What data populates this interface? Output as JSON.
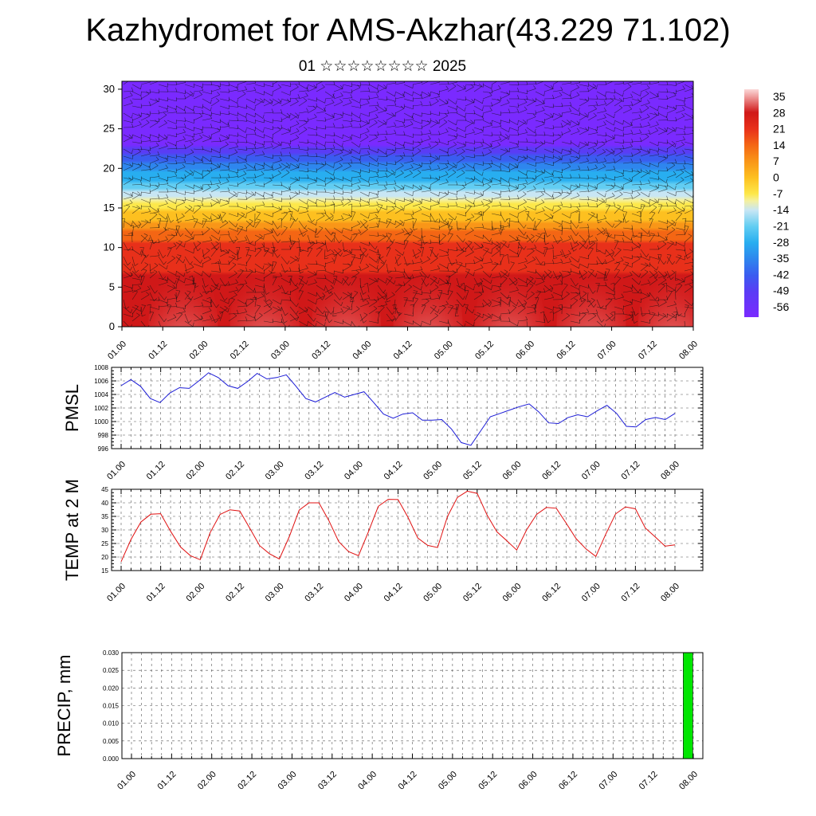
{
  "header": {
    "title": "Kazhydromet for AMS-Akzhar(43.229 71.102)",
    "subtitle": "01 ☆☆☆☆☆☆☆☆ 2025"
  },
  "time_labels": [
    "01.00",
    "01.12",
    "02.00",
    "02.12",
    "03.00",
    "03.12",
    "04.00",
    "04.12",
    "05.00",
    "05.12",
    "06.00",
    "06.12",
    "07.00",
    "07.12",
    "08.00"
  ],
  "chart_data": [
    {
      "type": "heatmap",
      "name": "cross-section",
      "ylim": [
        0,
        31
      ],
      "yticks": [
        0,
        5,
        10,
        15,
        20,
        25,
        30
      ],
      "colorbar_labels": [
        "35",
        "28",
        "21",
        "14",
        "7",
        "0",
        "-7",
        "-14",
        "-21",
        "-28",
        "-35",
        "-42",
        "-49",
        "-56"
      ],
      "colorbar_range": [
        -60,
        38
      ],
      "colorscale": [
        {
          "v": -60,
          "color": "#7a2aff"
        },
        {
          "v": -49,
          "color": "#5a3cf5"
        },
        {
          "v": -42,
          "color": "#3a5cf0"
        },
        {
          "v": -35,
          "color": "#2e86ee"
        },
        {
          "v": -28,
          "color": "#28aef0"
        },
        {
          "v": -21,
          "color": "#62cdf2"
        },
        {
          "v": -14,
          "color": "#c8e6f4"
        },
        {
          "v": -10,
          "color": "#f4f0a0"
        },
        {
          "v": -7,
          "color": "#fde84a"
        },
        {
          "v": 0,
          "color": "#fdc020"
        },
        {
          "v": 7,
          "color": "#f99618"
        },
        {
          "v": 14,
          "color": "#f46614"
        },
        {
          "v": 21,
          "color": "#e8301a"
        },
        {
          "v": 28,
          "color": "#d01818"
        },
        {
          "v": 35,
          "color": "#f0a0a0"
        },
        {
          "v": 38,
          "color": "#fbd8d8"
        }
      ]
    },
    {
      "type": "line",
      "ylabel": "PMSL",
      "ylim": [
        996,
        1008
      ],
      "yticks": [
        996,
        998,
        1000,
        1002,
        1004,
        1006,
        1008
      ],
      "color": "#1b1bd6",
      "series": [
        {
          "values": [
            1005.3,
            1006.2,
            1005.2,
            1003.4,
            1002.8,
            1004.2,
            1005.0,
            1004.9,
            1006.0,
            1007.2,
            1006.5,
            1005.3,
            1004.9,
            1005.9,
            1007.1,
            1006.3,
            1006.5,
            1006.9,
            1005.2,
            1003.4,
            1002.9,
            1003.6,
            1004.3,
            1003.6,
            1004.0,
            1004.4,
            1002.8,
            1001.1,
            1000.5,
            1001.1,
            1001.3,
            1000.2,
            1000.2,
            1000.3,
            998.9,
            996.9,
            996.5,
            998.6,
            1000.7,
            1001.2,
            1001.7,
            1002.2,
            1002.6,
            1001.4,
            999.8,
            999.7,
            1000.6,
            1001.0,
            1000.7,
            1001.6,
            1002.4,
            1001.2,
            999.3,
            999.2,
            1000.3,
            1000.6,
            1000.3,
            1001.2
          ]
        }
      ]
    },
    {
      "type": "line",
      "ylabel": "TEMP at 2 M",
      "ylim": [
        15,
        45
      ],
      "yticks": [
        15,
        20,
        25,
        30,
        35,
        40,
        45
      ],
      "color": "#e01010",
      "series": [
        {
          "values": [
            18.3,
            26.5,
            32.9,
            35.8,
            36.0,
            29.5,
            23.7,
            20.5,
            19.0,
            29.0,
            35.7,
            37.4,
            37.0,
            30.7,
            24.2,
            21.2,
            19.3,
            27.5,
            37.3,
            40.0,
            40.0,
            33.5,
            25.7,
            22.0,
            20.5,
            29.3,
            38.7,
            41.3,
            41.2,
            34.7,
            27.0,
            24.3,
            23.5,
            35.0,
            42.0,
            44.3,
            43.5,
            35.5,
            29.3,
            26.0,
            22.6,
            30.0,
            35.7,
            38.3,
            38.0,
            32.5,
            26.8,
            23.0,
            20.2,
            28.4,
            35.9,
            38.5,
            37.8,
            30.7,
            27.4,
            24.0,
            24.5
          ]
        }
      ]
    },
    {
      "type": "bar",
      "ylabel": "PRECIP, mm",
      "ylim": [
        0,
        0.03
      ],
      "yticks": [
        "0.000",
        "0.005",
        "0.010",
        "0.015",
        "0.020",
        "0.025",
        "0.030"
      ],
      "color": "#00e600",
      "bars": [
        {
          "x_index": 13.85,
          "value": 0.03
        }
      ]
    }
  ]
}
